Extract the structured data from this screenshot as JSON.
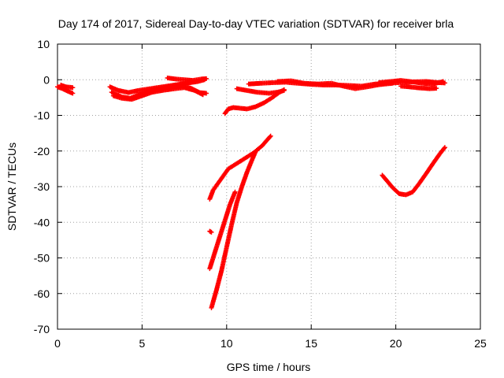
{
  "chart_data": {
    "type": "scatter",
    "title": "Day 174 of 2017, Sidereal Day-to-day VTEC variation (SDTVAR) for receiver brla",
    "xlabel": "GPS time / hours",
    "ylabel": "SDTVAR / TECUs",
    "xlim": [
      0,
      25
    ],
    "ylim": [
      -70,
      10
    ],
    "xticks": [
      0,
      5,
      10,
      15,
      20,
      25
    ],
    "yticks": [
      10,
      0,
      -10,
      -20,
      -30,
      -40,
      -50,
      -60,
      -70
    ],
    "grid": true,
    "legend": "none",
    "marker": "plus",
    "color": "#ff0000",
    "series": [
      {
        "values": [
          [
            0.0,
            -2.0
          ],
          [
            0.3,
            -2.5
          ],
          [
            0.6,
            -3.2
          ],
          [
            0.9,
            -3.8
          ]
        ]
      },
      {
        "values": [
          [
            0.2,
            -1.5
          ],
          [
            0.5,
            -2.0
          ],
          [
            0.9,
            -2.2
          ]
        ]
      },
      {
        "values": [
          [
            3.1,
            -2.0
          ],
          [
            3.6,
            -3.0
          ],
          [
            4.2,
            -3.6
          ],
          [
            4.8,
            -3.0
          ],
          [
            5.5,
            -2.5
          ],
          [
            6.2,
            -2.0
          ],
          [
            6.9,
            -1.5
          ],
          [
            7.6,
            -1.0
          ],
          [
            8.3,
            -0.5
          ],
          [
            8.7,
            0.0
          ]
        ]
      },
      {
        "values": [
          [
            3.2,
            -3.5
          ],
          [
            3.8,
            -4.8
          ],
          [
            4.3,
            -5.2
          ],
          [
            4.9,
            -4.0
          ],
          [
            5.5,
            -3.2
          ],
          [
            6.1,
            -2.5
          ],
          [
            6.7,
            -2.0
          ],
          [
            7.3,
            -1.8
          ],
          [
            7.9,
            -2.4
          ],
          [
            8.4,
            -3.6
          ],
          [
            8.8,
            -3.8
          ]
        ]
      },
      {
        "values": [
          [
            3.3,
            -4.5
          ],
          [
            3.8,
            -5.2
          ],
          [
            4.4,
            -5.5
          ],
          [
            5.0,
            -4.5
          ],
          [
            5.6,
            -3.5
          ],
          [
            6.2,
            -3.0
          ],
          [
            6.8,
            -2.6
          ],
          [
            7.5,
            -2.2
          ],
          [
            8.1,
            -3.0
          ],
          [
            8.6,
            -4.2
          ]
        ]
      },
      {
        "values": [
          [
            6.5,
            0.5
          ],
          [
            7.0,
            0.2
          ],
          [
            7.5,
            0.0
          ],
          [
            8.0,
            -0.2
          ],
          [
            8.5,
            0.2
          ],
          [
            8.8,
            0.3
          ]
        ]
      },
      {
        "values": [
          [
            9.9,
            -9.5
          ],
          [
            10.1,
            -8.2
          ],
          [
            10.4,
            -7.8
          ],
          [
            10.8,
            -8.0
          ],
          [
            11.2,
            -8.2
          ],
          [
            11.7,
            -7.6
          ],
          [
            12.2,
            -6.5
          ],
          [
            12.7,
            -5.0
          ],
          [
            13.1,
            -3.6
          ],
          [
            13.4,
            -2.8
          ]
        ]
      },
      {
        "values": [
          [
            10.6,
            -2.5
          ],
          [
            11.2,
            -3.0
          ],
          [
            11.8,
            -3.5
          ],
          [
            12.5,
            -3.8
          ],
          [
            13.0,
            -3.5
          ],
          [
            13.4,
            -3.0
          ]
        ]
      },
      {
        "values": [
          [
            11.3,
            -1.2
          ],
          [
            12.0,
            -1.0
          ],
          [
            12.8,
            -0.8
          ],
          [
            13.5,
            -0.7
          ],
          [
            14.2,
            -1.0
          ],
          [
            15.0,
            -1.3
          ],
          [
            15.8,
            -1.5
          ],
          [
            16.5,
            -1.5
          ],
          [
            17.2,
            -1.6
          ],
          [
            18.0,
            -1.8
          ],
          [
            18.8,
            -1.2
          ],
          [
            19.5,
            -1.0
          ],
          [
            20.2,
            -0.8
          ],
          [
            21.0,
            -0.6
          ],
          [
            21.8,
            -0.5
          ],
          [
            22.5,
            -0.8
          ],
          [
            22.9,
            -0.9
          ]
        ]
      },
      {
        "values": [
          [
            13.0,
            -0.5
          ],
          [
            13.8,
            -0.3
          ],
          [
            14.6,
            -1.0
          ],
          [
            15.4,
            -1.2
          ],
          [
            16.2,
            -1.0
          ],
          [
            16.9,
            -1.8
          ],
          [
            17.6,
            -2.5
          ],
          [
            18.3,
            -2.0
          ],
          [
            19.0,
            -1.4
          ],
          [
            19.8,
            -1.0
          ]
        ]
      },
      {
        "values": [
          [
            19.0,
            -0.8
          ],
          [
            19.7,
            -0.5
          ],
          [
            20.3,
            -0.2
          ],
          [
            21.0,
            -0.6
          ],
          [
            21.6,
            -1.0
          ],
          [
            22.2,
            -1.2
          ],
          [
            22.8,
            -0.5
          ]
        ]
      },
      {
        "values": [
          [
            20.3,
            -1.8
          ],
          [
            20.8,
            -2.0
          ],
          [
            21.4,
            -2.3
          ],
          [
            22.0,
            -2.5
          ],
          [
            22.4,
            -2.4
          ]
        ]
      },
      {
        "values": [
          [
            9.0,
            -33.5
          ],
          [
            9.2,
            -31.0
          ],
          [
            9.5,
            -29.0
          ],
          [
            9.8,
            -27.0
          ],
          [
            10.1,
            -25.0
          ],
          [
            10.6,
            -23.5
          ],
          [
            11.1,
            -22.0
          ],
          [
            11.6,
            -20.5
          ],
          [
            12.1,
            -18.5
          ],
          [
            12.6,
            -15.8
          ]
        ]
      },
      {
        "values": [
          [
            9.0,
            -53.0
          ],
          [
            9.3,
            -48.5
          ],
          [
            9.6,
            -44.0
          ],
          [
            9.9,
            -39.5
          ],
          [
            10.2,
            -35.0
          ],
          [
            10.5,
            -31.5
          ]
        ]
      },
      {
        "values": [
          [
            9.1,
            -64.0
          ],
          [
            9.4,
            -59.0
          ],
          [
            9.7,
            -53.5
          ],
          [
            10.0,
            -47.0
          ],
          [
            10.3,
            -40.5
          ],
          [
            10.6,
            -34.5
          ],
          [
            10.9,
            -30.0
          ],
          [
            11.2,
            -26.0
          ],
          [
            11.5,
            -22.5
          ],
          [
            11.7,
            -20.3
          ]
        ]
      },
      {
        "values": [
          [
            9.0,
            -42.5
          ],
          [
            9.1,
            -42.8
          ]
        ]
      },
      {
        "values": [
          [
            19.2,
            -26.8
          ],
          [
            19.5,
            -28.5
          ],
          [
            19.8,
            -30.2
          ],
          [
            20.2,
            -32.0
          ],
          [
            20.6,
            -32.3
          ],
          [
            21.0,
            -31.5
          ],
          [
            21.4,
            -29.0
          ],
          [
            21.8,
            -26.3
          ],
          [
            22.2,
            -23.5
          ],
          [
            22.6,
            -20.8
          ],
          [
            22.9,
            -19.0
          ]
        ]
      }
    ]
  }
}
